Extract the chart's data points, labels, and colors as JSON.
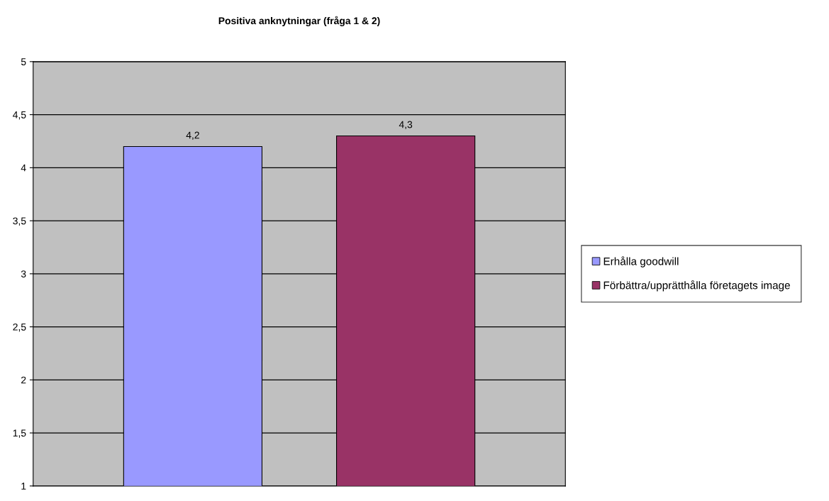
{
  "chart_data": {
    "type": "bar",
    "title": "Positiva anknytningar (fråga 1 & 2)",
    "categories": [
      null
    ],
    "series": [
      {
        "name": "Erhålla goodwill",
        "color": "#9999ff",
        "values": [
          4.2
        ],
        "value_labels": [
          "4,2"
        ]
      },
      {
        "name": "Förbättra/upprätthålla företagets image",
        "color": "#993366",
        "values": [
          4.3
        ],
        "value_labels": [
          "4,3"
        ]
      }
    ],
    "ylim": [
      1,
      5
    ],
    "yticks": [
      1,
      {
        "value": 1.5,
        "label": "1,5"
      },
      2,
      {
        "value": 2.5,
        "label": "2,5"
      },
      3,
      {
        "value": 3.5,
        "label": "3,5"
      },
      4,
      {
        "value": 4.5,
        "label": "4,5"
      },
      5
    ],
    "grid": "y",
    "legend": "right"
  }
}
